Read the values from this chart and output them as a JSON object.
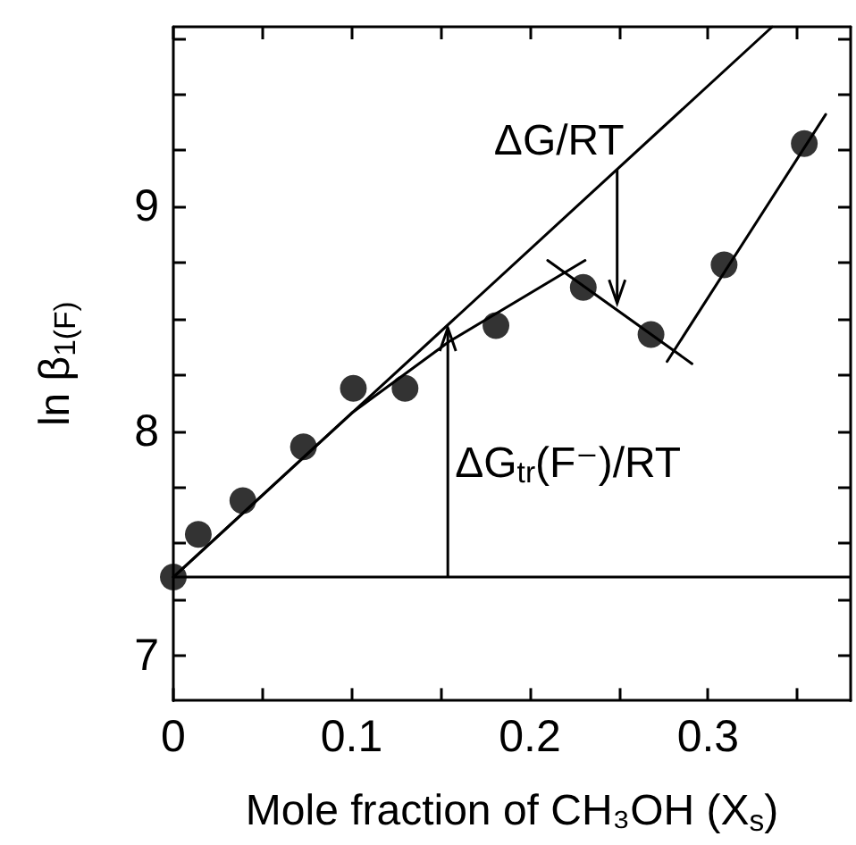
{
  "chart_data": {
    "type": "scatter",
    "xlabel": "Mole fraction of CH₃OH (X$_{s}$)",
    "ylabel": "ln β$_{1(F)}$",
    "xlim": [
      0,
      0.38
    ],
    "ylim": [
      6.8,
      9.8
    ],
    "xticks": [
      0,
      {
        "value": 0.05,
        "label": null
      },
      0.1,
      {
        "value": 0.15,
        "label": null
      },
      0.2,
      {
        "value": 0.25,
        "label": null
      },
      0.3,
      {
        "value": 0.35,
        "label": null
      }
    ],
    "yticks": [
      7,
      {
        "value": 7.25,
        "label": null
      },
      {
        "value": 7.5,
        "label": null
      },
      {
        "value": 7.75,
        "label": null
      },
      8,
      {
        "value": 8.25,
        "label": null
      },
      {
        "value": 8.5,
        "label": null
      },
      {
        "value": 8.75,
        "label": null
      },
      9,
      {
        "value": 9.25,
        "label": null
      },
      {
        "value": 9.5,
        "label": null
      },
      {
        "value": 9.75,
        "label": null
      }
    ],
    "grid": false,
    "series": [
      {
        "marker": "circle",
        "color": "#000000",
        "x": [
          0,
          0.014,
          0.039,
          0.073,
          0.101,
          0.13,
          0.181,
          0.23,
          0.268,
          0.309,
          0.354
        ],
        "values": [
          7.35,
          7.54,
          7.69,
          7.93,
          8.19,
          8.19,
          8.47,
          8.64,
          8.43,
          8.74,
          9.28
        ]
      },
      {
        "type": "line",
        "marker": "none",
        "line_style": "solid",
        "color": "#000000",
        "x": [
          0,
          0.336
        ],
        "values": [
          7.35,
          9.8
        ]
      },
      {
        "type": "line",
        "marker": "none",
        "line_style": "solid",
        "color": "#000000",
        "x": [
          0,
          0.1,
          0.155,
          0.231
        ],
        "values": [
          7.35,
          8.08,
          8.4,
          8.76
        ]
      },
      {
        "type": "line",
        "marker": "none",
        "line_style": "solid",
        "color": "#000000",
        "x": [
          0.21,
          0.291
        ],
        "values": [
          8.76,
          8.3
        ]
      },
      {
        "type": "line",
        "marker": "none",
        "line_style": "solid",
        "color": "#000000",
        "x": [
          0.277,
          0.366
        ],
        "values": [
          8.31,
          9.41
        ]
      }
    ],
    "ref_lines": [
      {
        "axis": "y",
        "value": 7.35,
        "color": "#000000"
      }
    ],
    "annotations": [
      {
        "text": "ΔG$_{tr}$(F⁻)/RT",
        "x": 0.154,
        "y": 8.46
      },
      {
        "text": "ΔG/RT",
        "x": 0.249,
        "y": 8.57
      }
    ]
  }
}
